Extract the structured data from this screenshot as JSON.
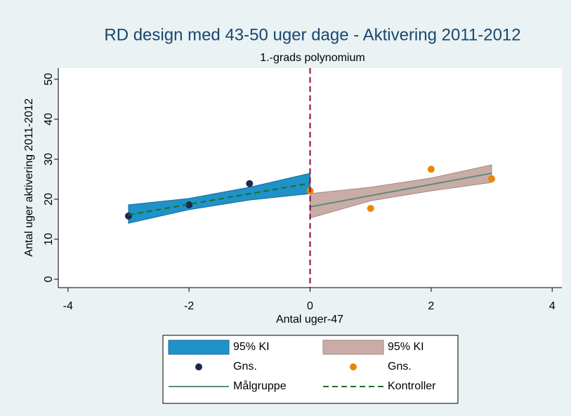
{
  "chart_data": {
    "type": "rd",
    "title": "RD design med 43-50 uger dage - Aktivering 2011-2012",
    "subtitle": "1.-grads polynomium",
    "xlabel": "Antal uger-47",
    "ylabel": "Antal uger aktivering 2011-2012",
    "xlim": [
      -4.16,
      4.16
    ],
    "xticks": [
      -4,
      -2,
      0,
      2,
      4
    ],
    "ylim": [
      -2.1,
      52.8
    ],
    "yticks": [
      0,
      10,
      20,
      30,
      40,
      50
    ],
    "xline": 0,
    "xline_color": "#90003a",
    "series": [
      {
        "name": "95% KI",
        "style": "band",
        "color": "#1f92c8",
        "edge": "#1a6a9a",
        "x": [
          -3,
          -2,
          -1,
          0
        ],
        "lower": [
          14.0,
          17.4,
          19.8,
          21.4
        ],
        "upper": [
          18.6,
          20.2,
          23.0,
          26.5
        ]
      },
      {
        "name": "95% KI",
        "style": "band",
        "color": "#c9aca6",
        "edge": "#a08a86",
        "x": [
          0,
          1,
          2,
          3
        ],
        "lower": [
          15.3,
          19.6,
          22.1,
          24.2
        ],
        "upper": [
          21.4,
          23.0,
          25.3,
          28.6
        ]
      },
      {
        "name": "Gns.",
        "style": "scatter",
        "color": "#1a2a4f",
        "x": [
          -3,
          -2,
          -1
        ],
        "values": [
          15.8,
          18.6,
          23.9
        ]
      },
      {
        "name": "Gns.",
        "style": "scatter",
        "color": "#e8860c",
        "x": [
          0,
          1,
          2,
          3
        ],
        "values": [
          22.1,
          17.7,
          27.5,
          25.1
        ]
      },
      {
        "name": "Målgruppe",
        "style": "line",
        "color": "#5f8a7e",
        "x": [
          0,
          3
        ],
        "values": [
          18.1,
          26.5
        ]
      },
      {
        "name": "Kontroller",
        "style": "dashed",
        "color": "#1e6e1e",
        "x": [
          -3,
          0
        ],
        "values": [
          16.1,
          24.0
        ]
      }
    ]
  }
}
